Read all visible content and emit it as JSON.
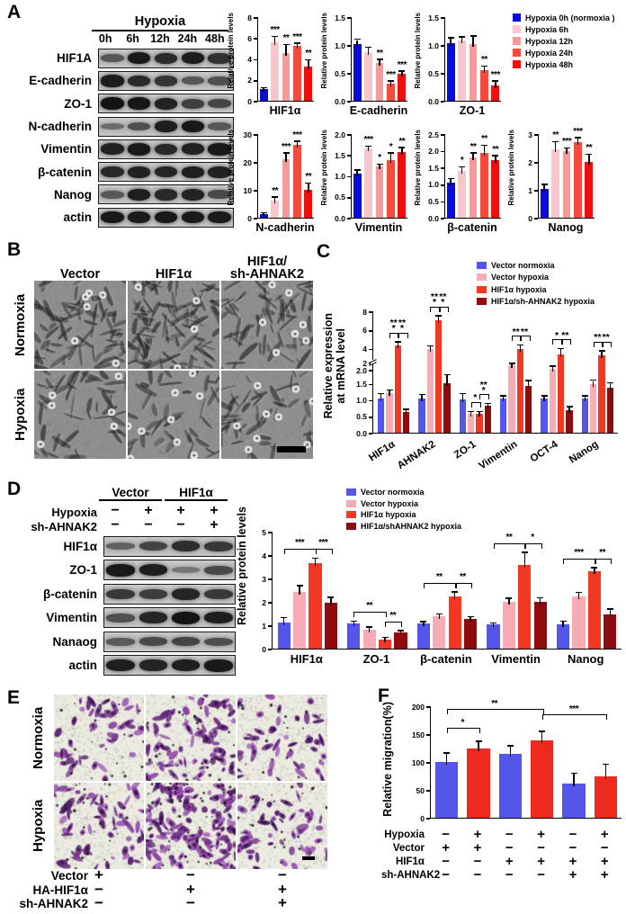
{
  "palette": {
    "A": [
      "#0a0adc",
      "#f9c6ce",
      "#f39b9b",
      "#f44b3e",
      "#ef0f0f"
    ],
    "group": [
      "#5456e9",
      "#f6abb5",
      "#f23723",
      "#8f0b0e"
    ],
    "blue": "#5456e9",
    "red": "#ee2a1e"
  },
  "panelA": {
    "label": "A",
    "blot": {
      "treatment_header": "Hypoxia",
      "lanes": [
        "0h",
        "6h",
        "12h",
        "24h",
        "48h"
      ],
      "rows": [
        {
          "label": "HIF1A",
          "bands": [
            0.45,
            0.95,
            0.8,
            0.92,
            0.75
          ]
        },
        {
          "label": "E-cadherin",
          "bands": [
            0.92,
            0.8,
            0.72,
            0.45,
            0.5
          ]
        },
        {
          "label": "ZO-1",
          "bands": [
            0.98,
            0.96,
            0.88,
            0.62,
            0.58
          ]
        },
        {
          "label": "N-cadherin",
          "bands": [
            0.25,
            0.5,
            0.9,
            0.95,
            0.45
          ]
        },
        {
          "label": "Vimentin",
          "bands": [
            0.88,
            0.95,
            0.82,
            0.88,
            0.95
          ]
        },
        {
          "label": "β-catenin",
          "bands": [
            0.82,
            0.88,
            0.85,
            0.9,
            0.88
          ]
        },
        {
          "label": "Nanog",
          "bands": [
            0.45,
            0.9,
            0.82,
            0.88,
            0.55
          ]
        },
        {
          "label": "actin",
          "bands": [
            0.95,
            0.93,
            0.95,
            0.93,
            0.95
          ]
        }
      ]
    },
    "legend": [
      {
        "label": "Hypoxia 0h (normoxia )",
        "color": "#0a0adc"
      },
      {
        "label": "Hypoxia 6h",
        "color": "#f9c6ce"
      },
      {
        "label": "Hypoxia 12h",
        "color": "#f39b9b"
      },
      {
        "label": "Hypoxia 24h",
        "color": "#f44b3e"
      },
      {
        "label": "Hypoxia 48h",
        "color": "#ef0f0f"
      }
    ],
    "charts": [
      {
        "type": "bar",
        "palette": "A",
        "title": "HIF1α",
        "ylabel": "Relative protein levels",
        "ymax": 8,
        "ticks": [
          [
            0,
            "0"
          ],
          [
            2,
            "2"
          ],
          [
            4,
            "4"
          ],
          [
            6,
            "6"
          ],
          [
            8,
            "8"
          ]
        ],
        "values": [
          1.15,
          5.6,
          4.55,
          5.25,
          3.3
        ],
        "errors": [
          0.05,
          0.5,
          0.75,
          0.2,
          0.55
        ],
        "sig": [
          "",
          "***",
          "**",
          "***",
          "**"
        ]
      },
      {
        "type": "bar",
        "palette": "A",
        "title": "E-cadherin",
        "ylabel": "Relative protein levels",
        "ymax": 1.5,
        "ticks": [
          [
            0,
            "0.0"
          ],
          [
            0.5,
            "0.5"
          ],
          [
            1,
            "1.0"
          ],
          [
            1.5,
            "1.5"
          ]
        ],
        "values": [
          1.02,
          0.87,
          0.68,
          0.3,
          0.48
        ],
        "errors": [
          0.07,
          0.08,
          0.05,
          0.04,
          0.04
        ],
        "sig": [
          "",
          "",
          "**",
          "***",
          "***"
        ]
      },
      {
        "type": "bar",
        "palette": "A",
        "title": "ZO-1",
        "ylabel": "Relative protein levels",
        "ymax": 1.5,
        "ticks": [
          [
            0,
            "0.0"
          ],
          [
            0.5,
            "0.5"
          ],
          [
            1,
            "1.0"
          ],
          [
            1.5,
            "1.5"
          ]
        ],
        "values": [
          1.04,
          1.08,
          1.02,
          0.55,
          0.27
        ],
        "errors": [
          0.08,
          0.05,
          0.13,
          0.06,
          0.07
        ],
        "sig": [
          "",
          "",
          "",
          "**",
          "***"
        ]
      },
      {
        "type": "bar",
        "palette": "A",
        "title": "N-cadherin",
        "ylabel": "Relative protein levels",
        "ymax": 30,
        "ticks": [
          [
            0,
            "0"
          ],
          [
            10,
            "10"
          ],
          [
            20,
            "20"
          ],
          [
            30,
            "30"
          ]
        ],
        "values": [
          1.2,
          6,
          21,
          26,
          10
        ],
        "errors": [
          0.3,
          1.2,
          2,
          1.2,
          2.2
        ],
        "sig": [
          "",
          "**",
          "***",
          "***",
          "**"
        ]
      },
      {
        "type": "bar",
        "palette": "A",
        "title": "Vimentin",
        "ylabel": "Relative protein levels",
        "ymax": 2,
        "ticks": [
          [
            0,
            "0.0"
          ],
          [
            0.5,
            "0.5"
          ],
          [
            1,
            "1.0"
          ],
          [
            1.5,
            "1.5"
          ],
          [
            2,
            "2.0"
          ]
        ],
        "values": [
          1.05,
          1.65,
          1.22,
          1.38,
          1.58
        ],
        "errors": [
          0.07,
          0.05,
          0.04,
          0.15,
          0.08
        ],
        "sig": [
          "",
          "***",
          "*",
          "*",
          "**"
        ]
      },
      {
        "type": "bar",
        "palette": "A",
        "title": "β-catenin",
        "ylabel": "Relative protein levels",
        "ymax": 2.5,
        "ticks": [
          [
            0,
            "0.0"
          ],
          [
            0.5,
            "0.5"
          ],
          [
            1,
            "1.0"
          ],
          [
            1.5,
            "1.5"
          ],
          [
            2,
            "2.0"
          ],
          [
            2.5,
            "2.5"
          ]
        ],
        "values": [
          1.05,
          1.4,
          1.8,
          1.95,
          1.72
        ],
        "errors": [
          0.1,
          0.1,
          0.12,
          0.2,
          0.12
        ],
        "sig": [
          "",
          "*",
          "**",
          "**",
          "**"
        ]
      },
      {
        "type": "bar",
        "palette": "A",
        "title": "Nanog",
        "ylabel": "Relative protein levels",
        "ymax": 3,
        "ticks": [
          [
            0,
            "0"
          ],
          [
            1,
            "1"
          ],
          [
            2,
            "2"
          ],
          [
            3,
            "3"
          ]
        ],
        "values": [
          1.02,
          2.45,
          2.38,
          2.7,
          2
        ],
        "errors": [
          0.15,
          0.25,
          0.1,
          0.15,
          0.25
        ],
        "sig": [
          "",
          "**",
          "***",
          "***",
          "**"
        ]
      }
    ]
  },
  "panelB": {
    "label": "B",
    "columns": [
      {
        "lines": [
          "Vector"
        ]
      },
      {
        "lines": [
          "HIF1α"
        ]
      },
      {
        "lines": [
          "HIF1α/",
          "sh-AHNAK2"
        ]
      }
    ],
    "rows": [
      "Normoxia",
      "Hypoxia"
    ],
    "tiles": [
      [
        {
          "seed": 11,
          "cells": 72,
          "rings": 6
        },
        {
          "seed": 22,
          "cells": 88,
          "rings": 4
        },
        {
          "seed": 33,
          "cells": 62,
          "rings": 7
        }
      ],
      [
        {
          "seed": 44,
          "cells": 46,
          "rings": 6
        },
        {
          "seed": 55,
          "cells": 40,
          "rings": 9
        },
        {
          "seed": 66,
          "cells": 52,
          "rings": 9
        }
      ]
    ]
  },
  "panelC": {
    "label": "C",
    "legend": [
      {
        "label": "Vector normoxia",
        "color": "#5456e9"
      },
      {
        "label": "Vector hypoxia",
        "color": "#f6abb5"
      },
      {
        "label": "HIF1α hypoxia",
        "color": "#f23723"
      },
      {
        "label": "HIF1α/sh-AHNAK2 hypoxia",
        "color": "#8f0b0e"
      }
    ],
    "chart": {
      "type": "grouped-bar",
      "palette": "group",
      "vert": true,
      "rotate": true,
      "ylabel": [
        "Relative expression",
        "at mRNA level"
      ],
      "ymax": 8,
      "break": 2,
      "ticks": [
        [
          0,
          "0.0",
          0
        ],
        [
          0.5,
          "0.5",
          0
        ],
        [
          1,
          "1.0",
          0
        ],
        [
          1.5,
          "1.5",
          0
        ],
        [
          2,
          "2.0",
          -3
        ],
        [
          2.001,
          "2",
          5
        ],
        [
          4,
          "4",
          0
        ],
        [
          6,
          "6",
          0
        ],
        [
          8,
          "8",
          0
        ]
      ],
      "categories": [
        "HIF1α",
        "AHNAK2",
        "ZO-1",
        "Vimentin",
        "OCT-4",
        "Nanog"
      ],
      "groups": [
        [
          1.05,
          1.2,
          4.3,
          0.62
        ],
        [
          1.05,
          3.9,
          7.0,
          1.5
        ],
        [
          1.02,
          0.58,
          0.58,
          0.82
        ],
        [
          1.05,
          2.2,
          3.9,
          1.42
        ],
        [
          1.05,
          1.95,
          3.4,
          0.7
        ],
        [
          1.05,
          1.48,
          3.3,
          1.38
        ]
      ],
      "errors": [
        [
          0.12,
          0.08,
          0.35,
          0.08
        ],
        [
          0.1,
          0.3,
          0.45,
          0.25
        ],
        [
          0.15,
          0.05,
          0.05,
          0.05
        ],
        [
          0.05,
          0.15,
          0.4,
          0.15
        ],
        [
          0.05,
          0.1,
          0.5,
          0.08
        ],
        [
          0.05,
          0.1,
          0.4,
          0.12
        ]
      ],
      "sig": [
        [
          "***",
          "***"
        ],
        [
          "***",
          "***"
        ],
        [
          "*",
          "***"
        ],
        [
          "**",
          "**"
        ],
        [
          "*",
          "**"
        ],
        [
          "**",
          "**"
        ]
      ],
      "spans": [
        [
          1,
          2
        ],
        [
          2,
          3
        ]
      ]
    }
  },
  "panelD": {
    "label": "D",
    "blot": {
      "groups": [
        "Vector",
        "HIF1α"
      ],
      "cond_rows": [
        {
          "label": "Hypoxia",
          "signs": [
            "−",
            "+",
            "+",
            "+"
          ]
        },
        {
          "label": "sh-AHNAK2",
          "signs": [
            "−",
            "−",
            "−",
            "+"
          ]
        }
      ],
      "rows": [
        {
          "label": "HIF1α",
          "bands": [
            0.35,
            0.6,
            0.78,
            0.7
          ]
        },
        {
          "label": "ZO-1",
          "bands": [
            0.95,
            0.9,
            0.18,
            0.55
          ]
        },
        {
          "label": "β-catenin",
          "bands": [
            0.7,
            0.65,
            0.85,
            0.7
          ]
        },
        {
          "label": "Vimentin",
          "bands": [
            0.5,
            0.85,
            0.98,
            0.9
          ]
        },
        {
          "label": "Nanaog",
          "bands": [
            0.4,
            0.55,
            0.6,
            0.5
          ]
        },
        {
          "label": "actin",
          "bands": [
            0.9,
            0.85,
            0.9,
            0.95
          ]
        }
      ]
    },
    "legend": [
      {
        "label": "Vector normoxia",
        "color": "#5456e9"
      },
      {
        "label": "Vector hypoxia",
        "color": "#f6abb5"
      },
      {
        "label": "HIF1α hypoxia",
        "color": "#f23723"
      },
      {
        "label": "HIF1α/shAHNAK2 hypoxia",
        "color": "#8f0b0e"
      }
    ],
    "chart": {
      "type": "grouped-bar",
      "palette": "group",
      "vert": false,
      "rotate": false,
      "ylabel": "Relative protein levels",
      "ymax": 5,
      "ticks": [
        [
          0,
          "0",
          0
        ],
        [
          1,
          "1",
          0
        ],
        [
          2,
          "2",
          0
        ],
        [
          3,
          "3",
          0
        ],
        [
          4,
          "4",
          0
        ],
        [
          5,
          "5",
          0
        ]
      ],
      "categories": [
        "HIF1α",
        "ZO-1",
        "β-catenin",
        "Vimentin",
        "Nanog"
      ],
      "groups": [
        [
          1.1,
          2.42,
          3.65,
          1.95
        ],
        [
          1.08,
          0.82,
          0.4,
          0.7
        ],
        [
          1.08,
          1.4,
          2.25,
          1.27
        ],
        [
          1.03,
          2.0,
          3.58,
          2.02
        ],
        [
          1.05,
          2.22,
          3.32,
          1.47
        ]
      ],
      "errors": [
        [
          0.2,
          0.25,
          0.18,
          0.22
        ],
        [
          0.07,
          0.07,
          0.05,
          0.05
        ],
        [
          0.05,
          0.05,
          0.15,
          0.07
        ],
        [
          0.04,
          0.12,
          0.5,
          0.12
        ],
        [
          0.1,
          0.15,
          0.12,
          0.2
        ]
      ],
      "sig": [
        [
          "***",
          "***"
        ],
        [
          "**",
          "**"
        ],
        [
          "**",
          "**"
        ],
        [
          "**",
          "*"
        ],
        [
          "***",
          "**"
        ]
      ],
      "spans": [
        [
          0,
          2
        ],
        [
          2,
          3
        ]
      ]
    }
  },
  "panelE": {
    "label": "E",
    "rows": [
      "Normoxia",
      "Hypoxia"
    ],
    "tiles": [
      [
        {
          "seed": 101,
          "count": 45
        },
        {
          "seed": 102,
          "count": 78
        },
        {
          "seed": 103,
          "count": 46
        }
      ],
      [
        {
          "seed": 104,
          "count": 62
        },
        {
          "seed": 105,
          "count": 135
        },
        {
          "seed": 106,
          "count": 52
        }
      ]
    ],
    "matrix": [
      {
        "label": "Vector",
        "signs": [
          "+",
          "−",
          "−"
        ]
      },
      {
        "label": "HA-HIF1α",
        "signs": [
          "−",
          "+",
          "+"
        ]
      },
      {
        "label": "sh-AHNAK2",
        "signs": [
          "−",
          "−",
          "+"
        ]
      }
    ]
  },
  "panelF": {
    "label": "F",
    "chart": {
      "type": "bar",
      "ylabel": "Relative migration(%)",
      "ymax": 200,
      "ticks": [
        [
          0,
          "0"
        ],
        [
          50,
          "50"
        ],
        [
          100,
          "100"
        ],
        [
          150,
          "150"
        ],
        [
          200,
          "200"
        ]
      ],
      "values": [
        100,
        124,
        115,
        139,
        62,
        75
      ],
      "errors": [
        15,
        12,
        13,
        15,
        17,
        20
      ],
      "colors": [
        "#5456e9",
        "#ee2a1e",
        "#5456e9",
        "#ee2a1e",
        "#5456e9",
        "#ee2a1e"
      ],
      "sig": [
        "",
        "",
        "",
        "",
        "",
        ""
      ],
      "brackets": [
        {
          "a": 0,
          "b": 1,
          "label": "*",
          "h": 152
        },
        {
          "a": 0,
          "b": 3,
          "label": "**",
          "h": 186
        },
        {
          "a": 3,
          "b": 5,
          "label": "***",
          "h": 176
        }
      ]
    },
    "matrix": [
      {
        "label": "Hypoxia",
        "signs": [
          "−",
          "+",
          "−",
          "+",
          "−",
          "+"
        ]
      },
      {
        "label": "Vector",
        "signs": [
          "+",
          "+",
          "−",
          "−",
          "−",
          "−"
        ]
      },
      {
        "label": "HIF1α",
        "signs": [
          "−",
          "−",
          "+",
          "+",
          "+",
          "+"
        ]
      },
      {
        "label": "sh-AHNAK2",
        "signs": [
          "−",
          "−",
          "−",
          "−",
          "+",
          "+"
        ]
      }
    ]
  }
}
